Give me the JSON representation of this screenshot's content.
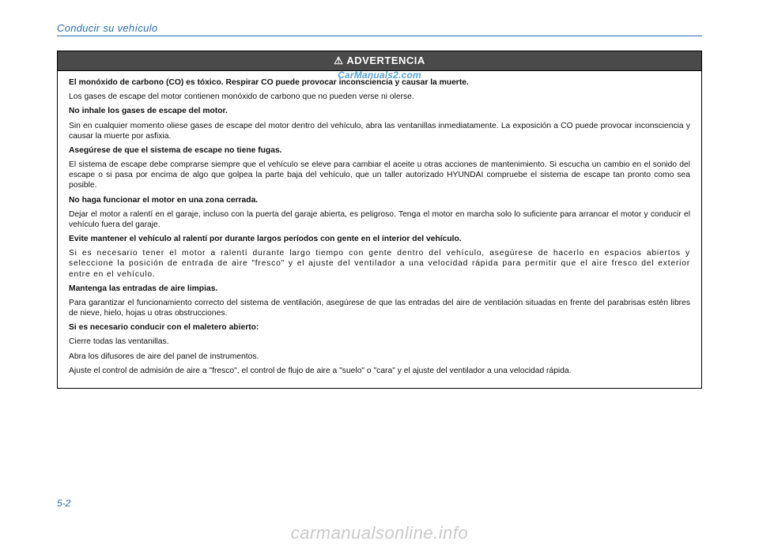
{
  "header": {
    "section_title": "Conducir su vehículo"
  },
  "watermarks": {
    "top": "CarManuals2.com",
    "bottom": "carmanualsonline.info"
  },
  "warning": {
    "icon": "⚠",
    "title": "ADVERTENCIA",
    "paragraphs": [
      {
        "bold": true,
        "text": "El monóxido de carbono (CO) es tóxico. Respirar CO puede provocar inconsciencia y causar la muerte."
      },
      {
        "bold": false,
        "text": "Los gases de escape del motor contienen monóxido de carbono que no pueden verse ni olerse."
      },
      {
        "bold": true,
        "text": "No inhale los gases de escape del motor."
      },
      {
        "bold": false,
        "text": "Sin en cualquier momento oliese gases de escape del motor dentro del vehículo, abra las ventanillas inmediatamente. La exposición a CO puede provocar inconsciencia y causar la muerte por asfixia."
      },
      {
        "bold": true,
        "text": "Asegúrese de que el sistema de escape no tiene fugas."
      },
      {
        "bold": false,
        "text": "El sistema de escape debe comprarse siempre que el vehículo se eleve para cambiar el aceite u otras acciones de mantenimiento. Si escucha un cambio en el sonido del escape o si pasa por encima de algo que golpea la parte baja del vehículo, que un taller autorizado HYUNDAI compruebe el sistema de escape tan pronto como sea posible."
      },
      {
        "bold": true,
        "text": "No haga funcionar el motor en una zona cerrada."
      },
      {
        "bold": false,
        "text": "Dejar el motor a ralentí en el garaje, incluso con la puerta del garaje abierta, es peligroso. Tenga el motor en marcha solo lo suficiente para arrancar el motor y conducir el vehículo fuera del garaje."
      },
      {
        "bold": true,
        "text": "Evite mantener el vehículo al ralentí por durante largos períodos con gente en el interior del vehículo."
      },
      {
        "bold": false,
        "spaced": true,
        "text": "Si es necesario tener el motor a ralentí durante largo tiempo con gente dentro del vehículo, asegúrese de hacerlo en espacios abiertos y seleccione la posición de entrada de aire \"fresco\" y el ajuste del ventilador a una velocidad rápida para permitir que el aire fresco del exterior entre en el vehículo."
      },
      {
        "bold": true,
        "text": "Mantenga las entradas de aire limpias."
      },
      {
        "bold": false,
        "text": "Para garantizar el funcionamiento correcto del sistema de ventilación, asegúrese de que las entradas del aire de ventilación situadas en frente del parabrisas estén libres de nieve, hielo, hojas u otras obstrucciones."
      },
      {
        "bold": true,
        "text": "Si es necesario conducir con el maletero abierto:"
      },
      {
        "bold": false,
        "text": "Cierre todas las ventanillas."
      },
      {
        "bold": false,
        "text": "Abra los difusores de aire del panel de instrumentos."
      },
      {
        "bold": false,
        "text": "Ajuste el control de admisión de aire a \"fresco\", el control de flujo de aire a \"suelo\" o \"cara\" y el ajuste del ventilador a una velocidad rápida."
      }
    ]
  },
  "page_number": "5-2",
  "colors": {
    "accent": "#2a6db5",
    "warning_header_bg": "#4a4a4a",
    "watermark_gray": "#c9c9c9",
    "watermark_blue": "#5aa4d6"
  }
}
